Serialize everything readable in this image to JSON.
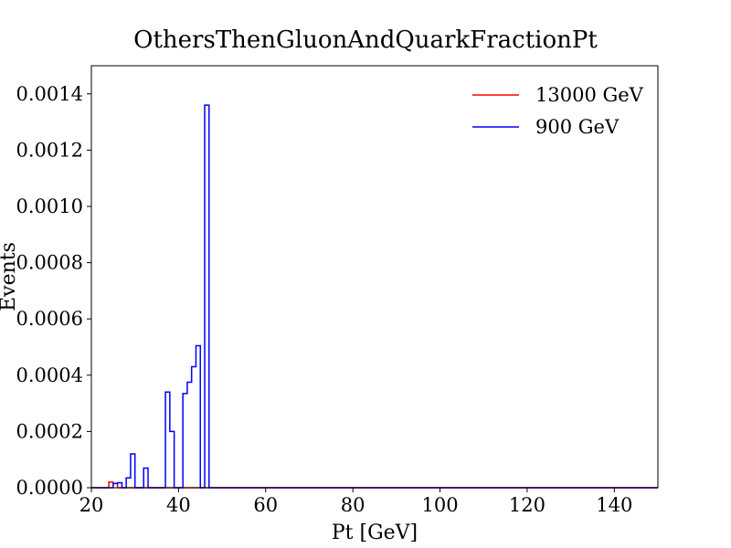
{
  "chart_data": {
    "type": "histogram-step",
    "title": "OthersThenGluonAndQuarkFractionPt",
    "xlabel": "Pt [GeV]",
    "ylabel": "Events",
    "xlim": [
      20,
      150
    ],
    "ylim": [
      0,
      0.0015
    ],
    "x_ticks": [
      20,
      40,
      60,
      80,
      100,
      120,
      140
    ],
    "x_tick_labels": [
      "20",
      "40",
      "60",
      "80",
      "100",
      "120",
      "140"
    ],
    "y_ticks": [
      0,
      0.0002,
      0.0004,
      0.0006,
      0.0008,
      0.001,
      0.0012,
      0.0014
    ],
    "y_tick_labels": [
      "0.0000",
      "0.0002",
      "0.0004",
      "0.0006",
      "0.0008",
      "0.0010",
      "0.0012",
      "0.0014"
    ],
    "legend_position": "top-right",
    "grid": false,
    "bin_width": 1,
    "bin_range": [
      20,
      150
    ],
    "series": [
      {
        "name": "13000 GeV",
        "color": "#ff0000",
        "bins": [
          {
            "x": 24,
            "y": 2e-05
          },
          {
            "x": 25,
            "y": 1.5e-05
          }
        ]
      },
      {
        "name": "900 GeV",
        "color": "#0000ff",
        "bins": [
          {
            "x": 25,
            "y": 1.5e-05
          },
          {
            "x": 26,
            "y": 1.8e-05
          },
          {
            "x": 28,
            "y": 3.5e-05
          },
          {
            "x": 29,
            "y": 0.00012
          },
          {
            "x": 32,
            "y": 7e-05
          },
          {
            "x": 37,
            "y": 0.00034
          },
          {
            "x": 38,
            "y": 0.0002
          },
          {
            "x": 41,
            "y": 0.000335
          },
          {
            "x": 42,
            "y": 0.000375
          },
          {
            "x": 43,
            "y": 0.00043
          },
          {
            "x": 44,
            "y": 0.000505
          },
          {
            "x": 46,
            "y": 0.00136
          }
        ]
      }
    ]
  }
}
